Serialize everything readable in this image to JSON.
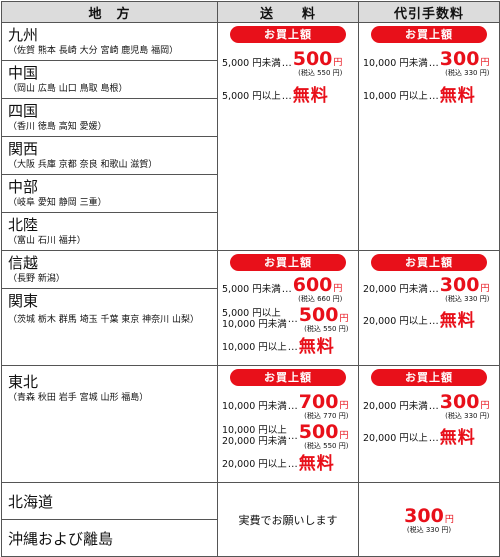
{
  "header": {
    "region": "地　方",
    "shipping": "送　　料",
    "cod": "代引手数料"
  },
  "badge": "お買上額",
  "regions": {
    "kyushu": {
      "name": "九州",
      "sub": "（佐賀 熊本 長崎 大分 宮崎 鹿児島 福岡）"
    },
    "chugoku": {
      "name": "中国",
      "sub": "（岡山 広島 山口 鳥取 島根）"
    },
    "shikoku": {
      "name": "四国",
      "sub": "（香川 徳島 高知 愛媛）"
    },
    "kansai": {
      "name": "関西",
      "sub": "（大阪 兵庫 京都 奈良 和歌山 滋賀）"
    },
    "chubu": {
      "name": "中部",
      "sub": "（岐阜 愛知 静岡 三重）"
    },
    "hokuriku": {
      "name": "北陸",
      "sub": "（富山 石川 福井）"
    },
    "shinetsu": {
      "name": "信越",
      "sub": "（長野 新潟）"
    },
    "kanto": {
      "name": "関東",
      "sub": "（茨城 栃木 群馬 埼玉 千葉 東京 神奈川 山梨）"
    },
    "tohoku": {
      "name": "東北",
      "sub": "（青森 秋田 岩手 宮城 山形 福島）"
    },
    "hokkaido": {
      "name": "北海道"
    },
    "okinawa": {
      "name": "沖縄および離島"
    }
  },
  "g1": {
    "ship": {
      "r1": {
        "cond": "5,000 円未満",
        "price": "500",
        "yen": "円",
        "tax": "(税込 550 円)"
      },
      "r2": {
        "cond": "5,000 円以上",
        "free": "無料"
      }
    },
    "cod": {
      "r1": {
        "cond": "10,000 円未満",
        "price": "300",
        "yen": "円",
        "tax": "(税込 330 円)"
      },
      "r2": {
        "cond": "10,000 円以上",
        "free": "無料"
      }
    }
  },
  "g2": {
    "ship": {
      "r1": {
        "cond": "5,000 円未満",
        "price": "600",
        "yen": "円",
        "tax": "(税込 660 円)"
      },
      "r2": {
        "cond_a": "5,000 円以上",
        "cond_b": "10,000 円未満",
        "price": "500",
        "yen": "円",
        "tax": "(税込 550 円)"
      },
      "r3": {
        "cond": "10,000 円以上",
        "free": "無料"
      }
    },
    "cod": {
      "r1": {
        "cond": "20,000 円未満",
        "price": "300",
        "yen": "円",
        "tax": "(税込 330 円)"
      },
      "r2": {
        "cond": "20,000 円以上",
        "free": "無料"
      }
    }
  },
  "g3": {
    "ship": {
      "r1": {
        "cond": "10,000 円未満",
        "price": "700",
        "yen": "円",
        "tax": "(税込 770 円)"
      },
      "r2": {
        "cond_a": "10,000 円以上",
        "cond_b": "20,000 円未満",
        "price": "500",
        "yen": "円",
        "tax": "(税込 550 円)"
      },
      "r3": {
        "cond": "20,000 円以上",
        "free": "無料"
      }
    },
    "cod": {
      "r1": {
        "cond": "20,000 円未満",
        "price": "300",
        "yen": "円",
        "tax": "(税込 330 円)"
      },
      "r2": {
        "cond": "20,000 円以上",
        "free": "無料"
      }
    }
  },
  "g4": {
    "ship_text": "実費でお願いします",
    "cod": {
      "price": "300",
      "yen": "円",
      "tax": "(税込 330 円)"
    }
  },
  "dots": "…"
}
